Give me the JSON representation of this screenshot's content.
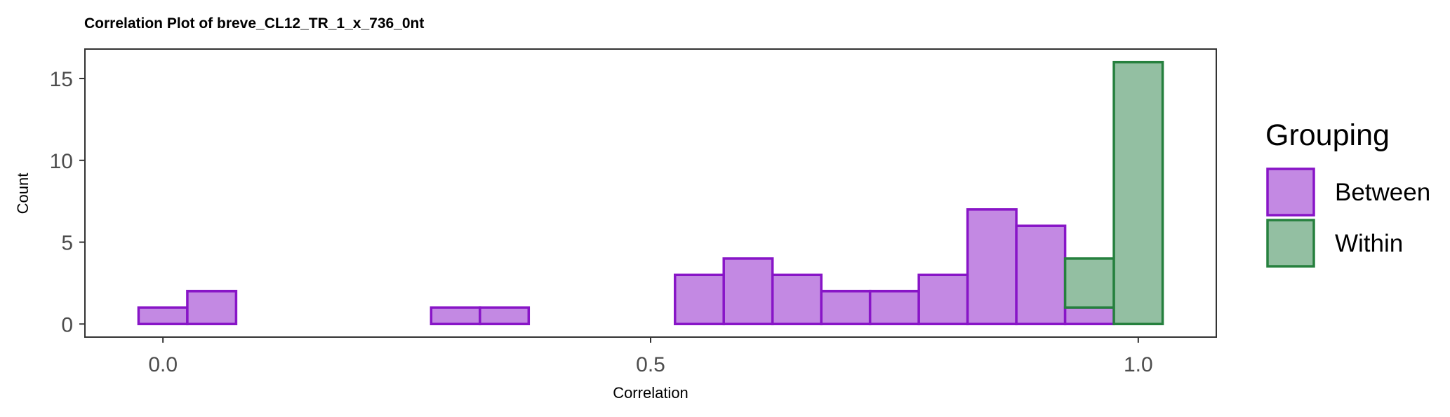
{
  "chart_data": {
    "type": "bar",
    "title": "Correlation Plot of breve_CL12_TR_1_x_736_0nt",
    "xlabel": "Correlation",
    "ylabel": "Count",
    "xlim": [
      -0.08,
      1.08
    ],
    "ylim": [
      -0.8,
      16.8
    ],
    "x_ticks": [
      0.0,
      0.5,
      1.0
    ],
    "x_tick_labels": [
      "0.0",
      "0.5",
      "1.0"
    ],
    "y_ticks": [
      0,
      5,
      10,
      15
    ],
    "y_tick_labels": [
      "0",
      "5",
      "10",
      "15"
    ],
    "grid": false,
    "stacked": true,
    "bin_width": 0.05,
    "bin_centers": [
      0.0,
      0.05,
      0.1,
      0.15,
      0.2,
      0.25,
      0.3,
      0.35,
      0.4,
      0.45,
      0.5,
      0.55,
      0.6,
      0.65,
      0.7,
      0.75,
      0.8,
      0.85,
      0.9,
      0.95,
      1.0
    ],
    "series": [
      {
        "name": "Between",
        "fill": "#c389e3",
        "stroke": "#8815c7",
        "values": [
          1,
          2,
          0,
          0,
          0,
          0,
          1,
          1,
          0,
          0,
          0,
          3,
          4,
          3,
          2,
          2,
          3,
          7,
          6,
          1,
          0
        ]
      },
      {
        "name": "Within",
        "fill": "#93bfa2",
        "stroke": "#26803e",
        "values": [
          0,
          0,
          0,
          0,
          0,
          0,
          0,
          0,
          0,
          0,
          0,
          0,
          0,
          0,
          0,
          0,
          0,
          0,
          0,
          3,
          16
        ]
      }
    ],
    "legend": {
      "title": "Grouping",
      "position": "right",
      "items": [
        "Between",
        "Within"
      ]
    }
  }
}
